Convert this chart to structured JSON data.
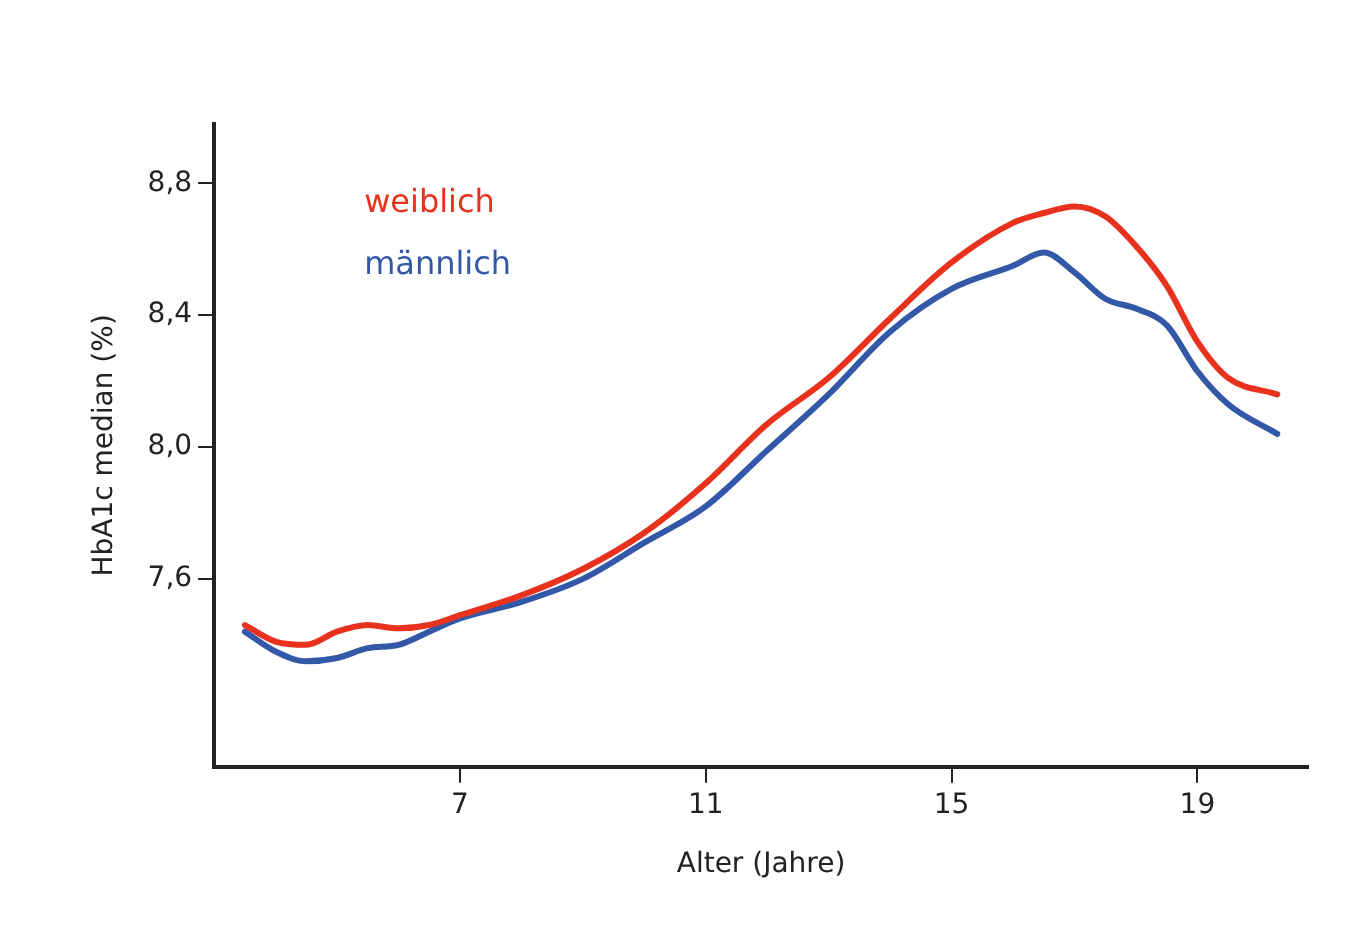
{
  "chart_data": {
    "type": "line",
    "xlabel": "Alter (Jahre)",
    "ylabel": "HbA1c median (%)",
    "xlim": [
      3,
      20.8
    ],
    "xticks": [
      7,
      11,
      15,
      19
    ],
    "ylim": [
      7.03,
      8.98
    ],
    "yticks": [
      {
        "value": 7.6,
        "label": "7,6"
      },
      {
        "value": 8.0,
        "label": "8,0"
      },
      {
        "value": 8.4,
        "label": "8,4"
      },
      {
        "value": 8.8,
        "label": "8,8"
      }
    ],
    "grid": false,
    "legend": "top left",
    "marker": "none",
    "line_style": "solid",
    "x": [
      3.5,
      4,
      4.5,
      5,
      5.5,
      6,
      6.5,
      7,
      8,
      9,
      10,
      11,
      12,
      13,
      14,
      15,
      16,
      16.5,
      17,
      17.5,
      18,
      18.5,
      19,
      19.5,
      20.3
    ],
    "series": [
      {
        "name": "weiblich",
        "color": "#e8321e",
        "values": [
          7.46,
          7.41,
          7.4,
          7.44,
          7.46,
          7.45,
          7.46,
          7.49,
          7.55,
          7.63,
          7.74,
          7.89,
          8.07,
          8.21,
          8.39,
          8.56,
          8.68,
          8.71,
          8.73,
          8.7,
          8.61,
          8.49,
          8.32,
          8.21,
          8.16
        ]
      },
      {
        "name": "männlich",
        "color": "#3358a8",
        "values": [
          7.44,
          7.38,
          7.35,
          7.36,
          7.39,
          7.4,
          7.44,
          7.48,
          7.53,
          7.6,
          7.71,
          7.82,
          7.99,
          8.16,
          8.35,
          8.48,
          8.55,
          8.59,
          8.53,
          8.45,
          8.42,
          8.37,
          8.23,
          8.13,
          8.04
        ]
      }
    ]
  }
}
